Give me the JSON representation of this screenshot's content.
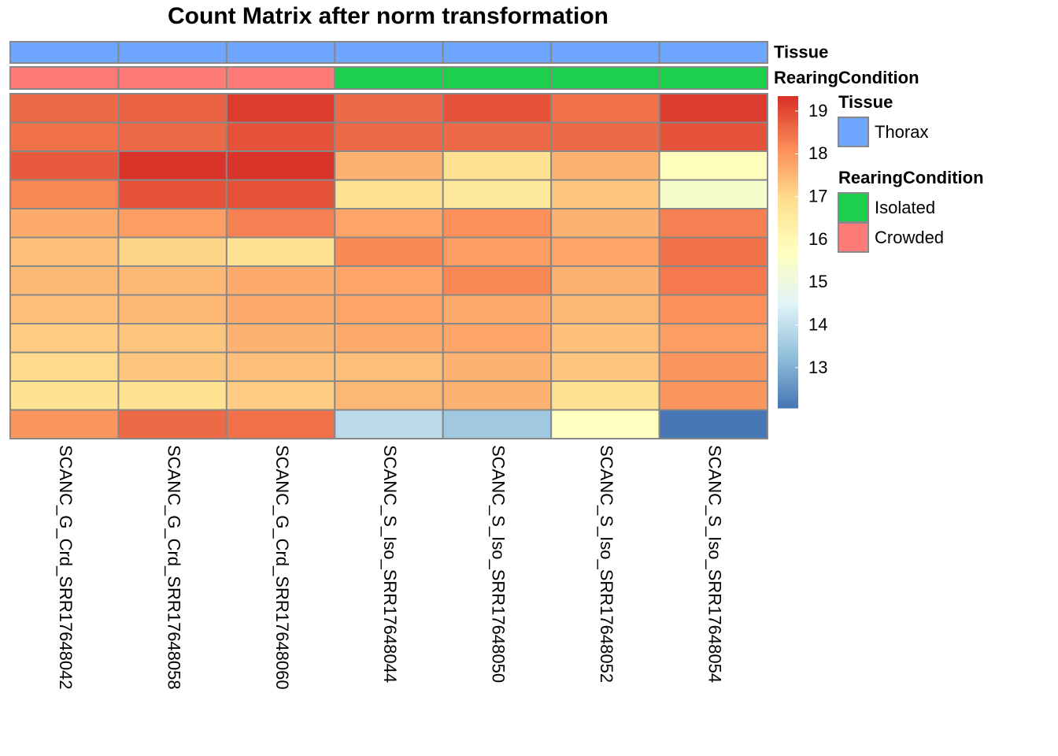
{
  "chart_data": {
    "type": "heatmap",
    "title": "Count Matrix after norm transformation",
    "columns": [
      "SCANC_G_Crd_SRR17648042",
      "SCANC_G_Crd_SRR17648058",
      "SCANC_G_Crd_SRR17648060",
      "SCANC_S_Iso_SRR17648044",
      "SCANC_S_Iso_SRR17648050",
      "SCANC_S_Iso_SRR17648052",
      "SCANC_S_Iso_SRR17648054"
    ],
    "values": [
      [
        18.6,
        18.7,
        19.2,
        18.6,
        18.9,
        18.5,
        19.2
      ],
      [
        18.5,
        18.6,
        18.9,
        18.6,
        18.6,
        18.6,
        18.9
      ],
      [
        18.8,
        19.3,
        19.3,
        17.6,
        16.9,
        17.6,
        15.8
      ],
      [
        18.2,
        18.9,
        18.9,
        16.8,
        16.6,
        17.3,
        15.4
      ],
      [
        17.7,
        17.9,
        18.3,
        17.8,
        18.1,
        17.6,
        18.3
      ],
      [
        17.4,
        17.1,
        16.9,
        18.2,
        17.9,
        17.8,
        18.5
      ],
      [
        17.5,
        17.5,
        17.7,
        17.8,
        18.2,
        17.6,
        18.4
      ],
      [
        17.4,
        17.5,
        17.7,
        17.8,
        17.7,
        17.5,
        18.1
      ],
      [
        17.2,
        17.3,
        17.6,
        17.7,
        17.8,
        17.4,
        17.9
      ],
      [
        17.0,
        17.3,
        17.4,
        17.4,
        17.6,
        17.3,
        18.0
      ],
      [
        16.8,
        16.9,
        17.2,
        17.5,
        17.6,
        16.9,
        18.0
      ],
      [
        18.0,
        18.6,
        18.5,
        13.9,
        13.5,
        15.7,
        12.1
      ]
    ],
    "colorbar": {
      "lim": [
        12.06,
        19.35
      ],
      "ticks": [
        13,
        14,
        15,
        16,
        17,
        18,
        19
      ],
      "colors": [
        "#4575b4",
        "#91bfdb",
        "#e0f3f8",
        "#ffffbf",
        "#fee090",
        "#fc8d59",
        "#d73027"
      ]
    },
    "annotations": [
      {
        "name": "Tissue",
        "values": [
          "Thorax",
          "Thorax",
          "Thorax",
          "Thorax",
          "Thorax",
          "Thorax",
          "Thorax"
        ],
        "legend": [
          {
            "label": "Thorax",
            "color": "#6ea6ff"
          }
        ]
      },
      {
        "name": "RearingCondition",
        "values": [
          "Crowded",
          "Crowded",
          "Crowded",
          "Isolated",
          "Isolated",
          "Isolated",
          "Isolated"
        ],
        "legend": [
          {
            "label": "Isolated",
            "color": "#1dcf4d"
          },
          {
            "label": "Crowded",
            "color": "#fe7b78"
          }
        ]
      }
    ]
  }
}
